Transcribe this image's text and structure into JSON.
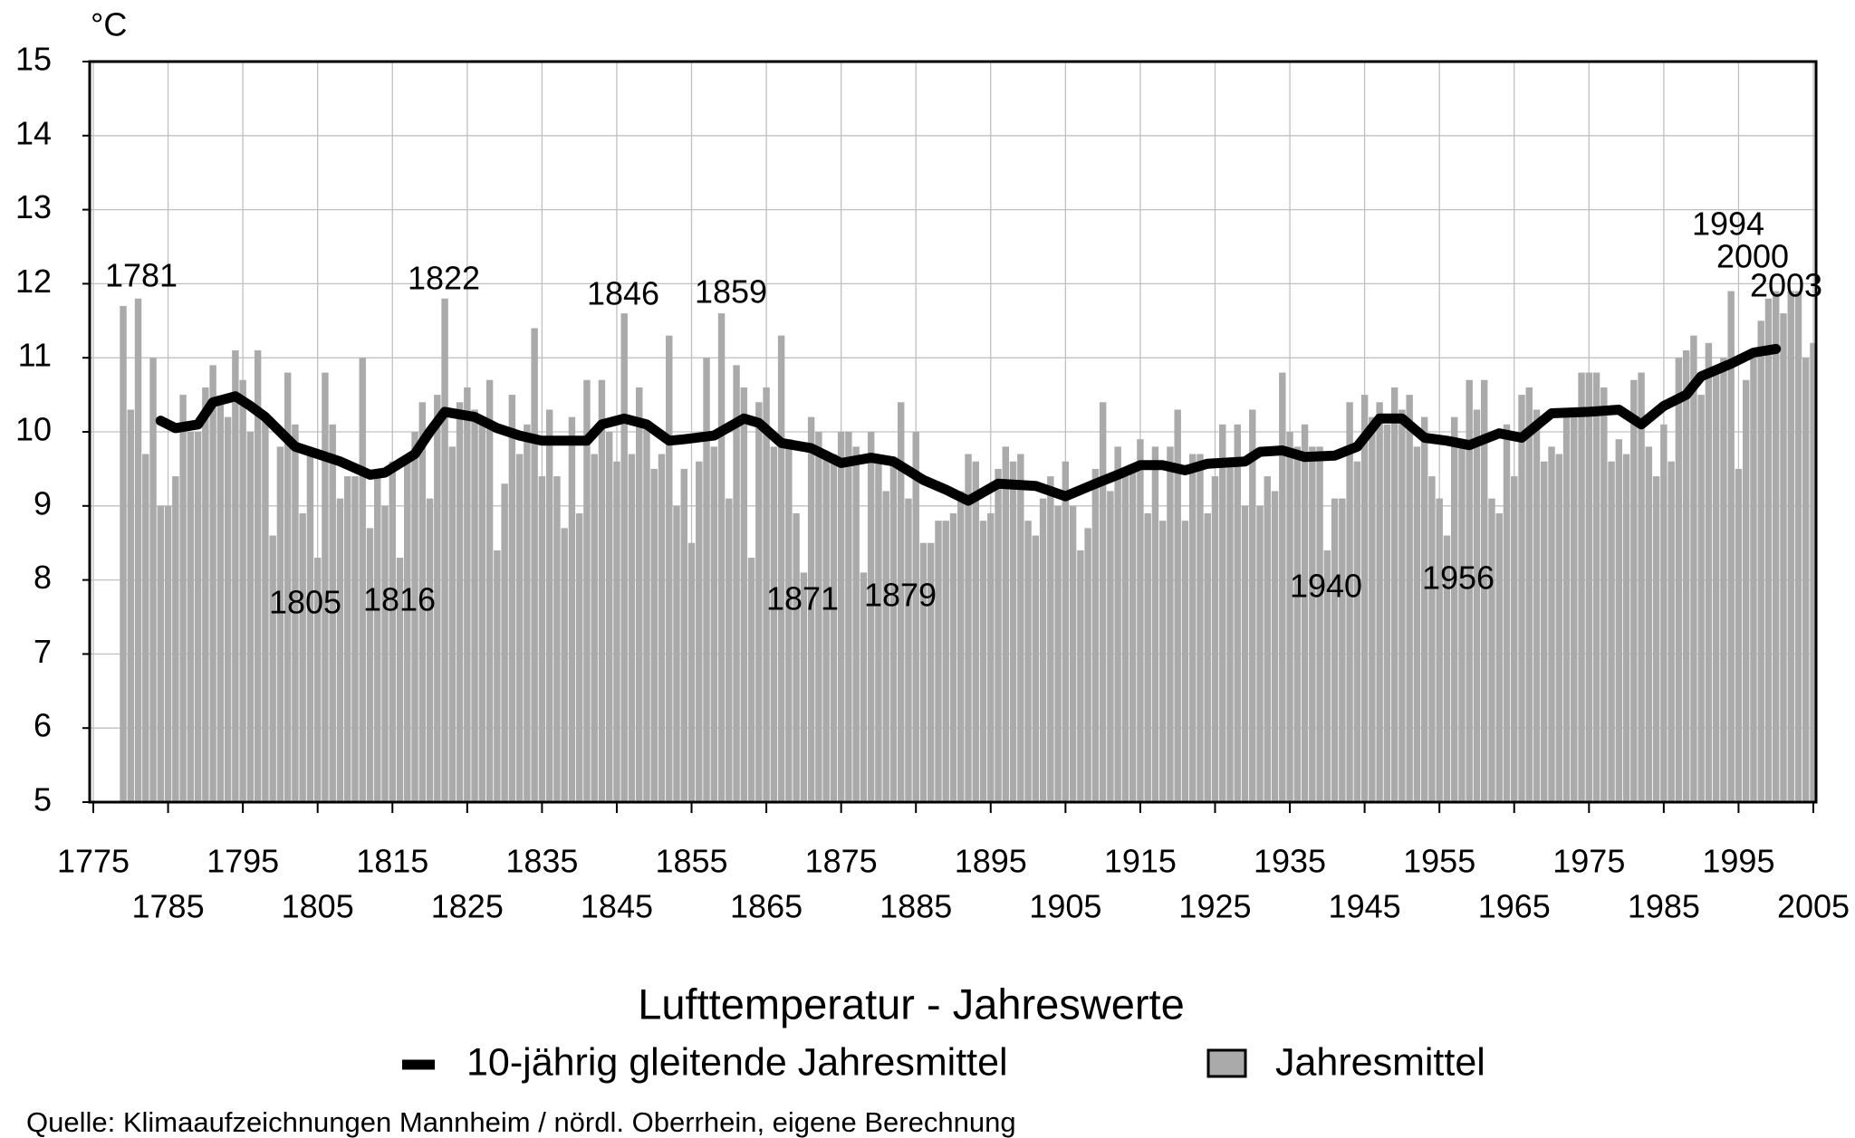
{
  "chart_data": {
    "type": "bar",
    "title": "Lufttemperatur - Jahreswerte",
    "y_label": "°C",
    "source": "Quelle: Klimaaufzeichnungen Mannheim / nördl. Oberrhein, eigene Berechnung",
    "xlim": [
      1775,
      2005
    ],
    "ylim": [
      5,
      15
    ],
    "xticks": [
      1775,
      1785,
      1795,
      1805,
      1815,
      1825,
      1835,
      1845,
      1855,
      1865,
      1875,
      1885,
      1895,
      1905,
      1915,
      1925,
      1935,
      1945,
      1955,
      1965,
      1975,
      1985,
      1995,
      2005
    ],
    "yticks": [
      5,
      6,
      7,
      8,
      9,
      10,
      11,
      12,
      13,
      14,
      15
    ],
    "grid": true,
    "x": [
      1779,
      1780,
      1781,
      1782,
      1783,
      1784,
      1785,
      1786,
      1787,
      1788,
      1789,
      1790,
      1791,
      1792,
      1793,
      1794,
      1795,
      1796,
      1797,
      1798,
      1799,
      1800,
      1801,
      1802,
      1803,
      1804,
      1805,
      1806,
      1807,
      1808,
      1809,
      1810,
      1811,
      1812,
      1813,
      1814,
      1815,
      1816,
      1817,
      1818,
      1819,
      1820,
      1821,
      1822,
      1823,
      1824,
      1825,
      1826,
      1827,
      1828,
      1829,
      1830,
      1831,
      1832,
      1833,
      1834,
      1835,
      1836,
      1837,
      1838,
      1839,
      1840,
      1841,
      1842,
      1843,
      1844,
      1845,
      1846,
      1847,
      1848,
      1849,
      1850,
      1851,
      1852,
      1853,
      1854,
      1855,
      1856,
      1857,
      1858,
      1859,
      1860,
      1861,
      1862,
      1863,
      1864,
      1865,
      1866,
      1867,
      1868,
      1869,
      1870,
      1871,
      1872,
      1873,
      1874,
      1875,
      1876,
      1877,
      1878,
      1879,
      1880,
      1881,
      1882,
      1883,
      1884,
      1885,
      1886,
      1887,
      1888,
      1889,
      1890,
      1891,
      1892,
      1893,
      1894,
      1895,
      1896,
      1897,
      1898,
      1899,
      1900,
      1901,
      1902,
      1903,
      1904,
      1905,
      1906,
      1907,
      1908,
      1909,
      1910,
      1911,
      1912,
      1913,
      1914,
      1915,
      1916,
      1917,
      1918,
      1919,
      1920,
      1921,
      1922,
      1923,
      1924,
      1925,
      1926,
      1927,
      1928,
      1929,
      1930,
      1931,
      1932,
      1933,
      1934,
      1935,
      1936,
      1937,
      1938,
      1939,
      1940,
      1941,
      1942,
      1943,
      1944,
      1945,
      1946,
      1947,
      1948,
      1949,
      1950,
      1951,
      1952,
      1953,
      1954,
      1955,
      1956,
      1957,
      1958,
      1959,
      1960,
      1961,
      1962,
      1963,
      1964,
      1965,
      1966,
      1967,
      1968,
      1969,
      1970,
      1971,
      1972,
      1973,
      1974,
      1975,
      1976,
      1977,
      1978,
      1979,
      1980,
      1981,
      1982,
      1983,
      1984,
      1985,
      1986,
      1987,
      1988,
      1989,
      1990,
      1991,
      1992,
      1993,
      1994,
      1995,
      1996,
      1997,
      1998,
      1999,
      2000,
      2001,
      2002,
      2003,
      2004,
      2005
    ],
    "series": [
      {
        "name": "Jahresmittel",
        "type": "bar",
        "color": "#aaaaaa",
        "values": [
          11.7,
          10.3,
          11.8,
          9.7,
          11.0,
          9.0,
          9.0,
          9.4,
          10.5,
          10.0,
          10.0,
          10.6,
          10.9,
          10.4,
          10.2,
          11.1,
          10.7,
          10.0,
          11.1,
          10.2,
          8.6,
          9.8,
          10.8,
          10.1,
          8.9,
          9.7,
          8.3,
          10.8,
          10.1,
          9.1,
          9.4,
          9.4,
          11.0,
          8.7,
          9.4,
          9.0,
          9.6,
          8.3,
          9.6,
          10.0,
          10.4,
          9.1,
          10.5,
          11.8,
          9.8,
          10.4,
          10.6,
          10.3,
          10.1,
          10.7,
          8.4,
          9.3,
          10.5,
          9.7,
          10.1,
          11.4,
          9.4,
          10.3,
          9.4,
          8.7,
          10.2,
          8.9,
          10.7,
          9.7,
          10.7,
          10.0,
          9.6,
          11.6,
          9.7,
          10.6,
          10.1,
          9.5,
          9.7,
          11.3,
          9.0,
          9.5,
          8.5,
          9.6,
          11.0,
          9.8,
          11.6,
          9.1,
          10.9,
          10.6,
          8.3,
          10.4,
          10.6,
          9.8,
          11.3,
          9.9,
          8.9,
          8.1,
          10.2,
          10.0,
          9.7,
          9.7,
          10.0,
          10.0,
          9.8,
          8.1,
          10.0,
          9.6,
          9.2,
          9.6,
          10.4,
          9.1,
          10.0,
          8.5,
          8.5,
          8.8,
          8.8,
          8.9,
          9.2,
          9.7,
          9.6,
          8.8,
          8.9,
          9.5,
          9.8,
          9.6,
          9.7,
          8.8,
          8.6,
          9.1,
          9.4,
          9.0,
          9.6,
          9.0,
          8.4,
          8.7,
          9.5,
          10.4,
          9.2,
          9.8,
          9.5,
          9.5,
          9.9,
          8.9,
          9.8,
          8.8,
          9.8,
          10.3,
          8.8,
          9.7,
          9.7,
          8.9,
          9.4,
          10.1,
          9.6,
          10.1,
          9.0,
          10.3,
          9.0,
          9.4,
          9.2,
          10.8,
          10.0,
          9.8,
          10.1,
          9.8,
          9.8,
          8.4,
          9.1,
          9.1,
          10.4,
          9.6,
          10.5,
          10.2,
          10.4,
          10.1,
          10.6,
          10.3,
          10.5,
          9.8,
          10.2,
          9.4,
          9.1,
          8.6,
          10.2,
          9.9,
          10.7,
          10.3,
          10.7,
          9.1,
          8.9,
          10.1,
          9.4,
          10.5,
          10.6,
          10.3,
          9.6,
          9.8,
          9.7,
          10.2,
          10.3,
          10.8,
          10.8,
          10.8,
          10.6,
          9.6,
          9.9,
          9.7,
          10.7,
          10.8,
          9.8,
          9.4,
          10.1,
          9.6,
          11.0,
          11.1,
          11.3,
          10.5,
          11.2,
          10.8,
          11.0,
          11.9,
          9.5,
          10.7,
          11.0,
          11.5,
          11.8,
          11.9,
          11.6,
          11.9,
          11.9,
          11.0,
          11.2
        ]
      },
      {
        "name": "10-jährig gleitende Jahresmittel",
        "type": "line",
        "color": "#000000",
        "x": [
          1784,
          1786,
          1789,
          1791,
          1794,
          1796,
          1798,
          1802,
          1805,
          1808,
          1812,
          1814,
          1818,
          1820,
          1822,
          1826,
          1829,
          1832,
          1835,
          1841,
          1843,
          1846,
          1849,
          1852,
          1854,
          1858,
          1862,
          1864,
          1867,
          1871,
          1875,
          1879,
          1882,
          1886,
          1889,
          1892,
          1896,
          1901,
          1905,
          1909,
          1912,
          1915,
          1918,
          1921,
          1924,
          1929,
          1931,
          1934,
          1937,
          1941,
          1944,
          1947,
          1950,
          1953,
          1956,
          1959,
          1963,
          1966,
          1970,
          1975,
          1979,
          1982,
          1985,
          1988,
          1990,
          1994,
          1997,
          2000
        ],
        "values": [
          10.15,
          10.05,
          10.1,
          10.4,
          10.48,
          10.35,
          10.2,
          9.8,
          9.7,
          9.6,
          9.42,
          9.45,
          9.7,
          10.0,
          10.27,
          10.2,
          10.05,
          9.95,
          9.88,
          9.88,
          10.1,
          10.18,
          10.1,
          9.88,
          9.9,
          9.95,
          10.18,
          10.12,
          9.85,
          9.78,
          9.58,
          9.65,
          9.6,
          9.35,
          9.22,
          9.07,
          9.3,
          9.27,
          9.13,
          9.3,
          9.42,
          9.55,
          9.55,
          9.48,
          9.57,
          9.6,
          9.73,
          9.75,
          9.66,
          9.68,
          9.8,
          10.18,
          10.18,
          9.92,
          9.88,
          9.82,
          9.98,
          9.92,
          10.25,
          10.27,
          10.3,
          10.1,
          10.35,
          10.5,
          10.75,
          10.92,
          11.07,
          11.12
        ]
      }
    ],
    "annotations": [
      {
        "text": "1781"
      },
      {
        "text": "1822"
      },
      {
        "text": "1846"
      },
      {
        "text": "1859"
      },
      {
        "text": "1805"
      },
      {
        "text": "1816"
      },
      {
        "text": "1871"
      },
      {
        "text": "1879"
      },
      {
        "text": "1940"
      },
      {
        "text": "1956"
      },
      {
        "text": "1994"
      },
      {
        "text": "2000"
      },
      {
        "text": "2003"
      }
    ]
  }
}
